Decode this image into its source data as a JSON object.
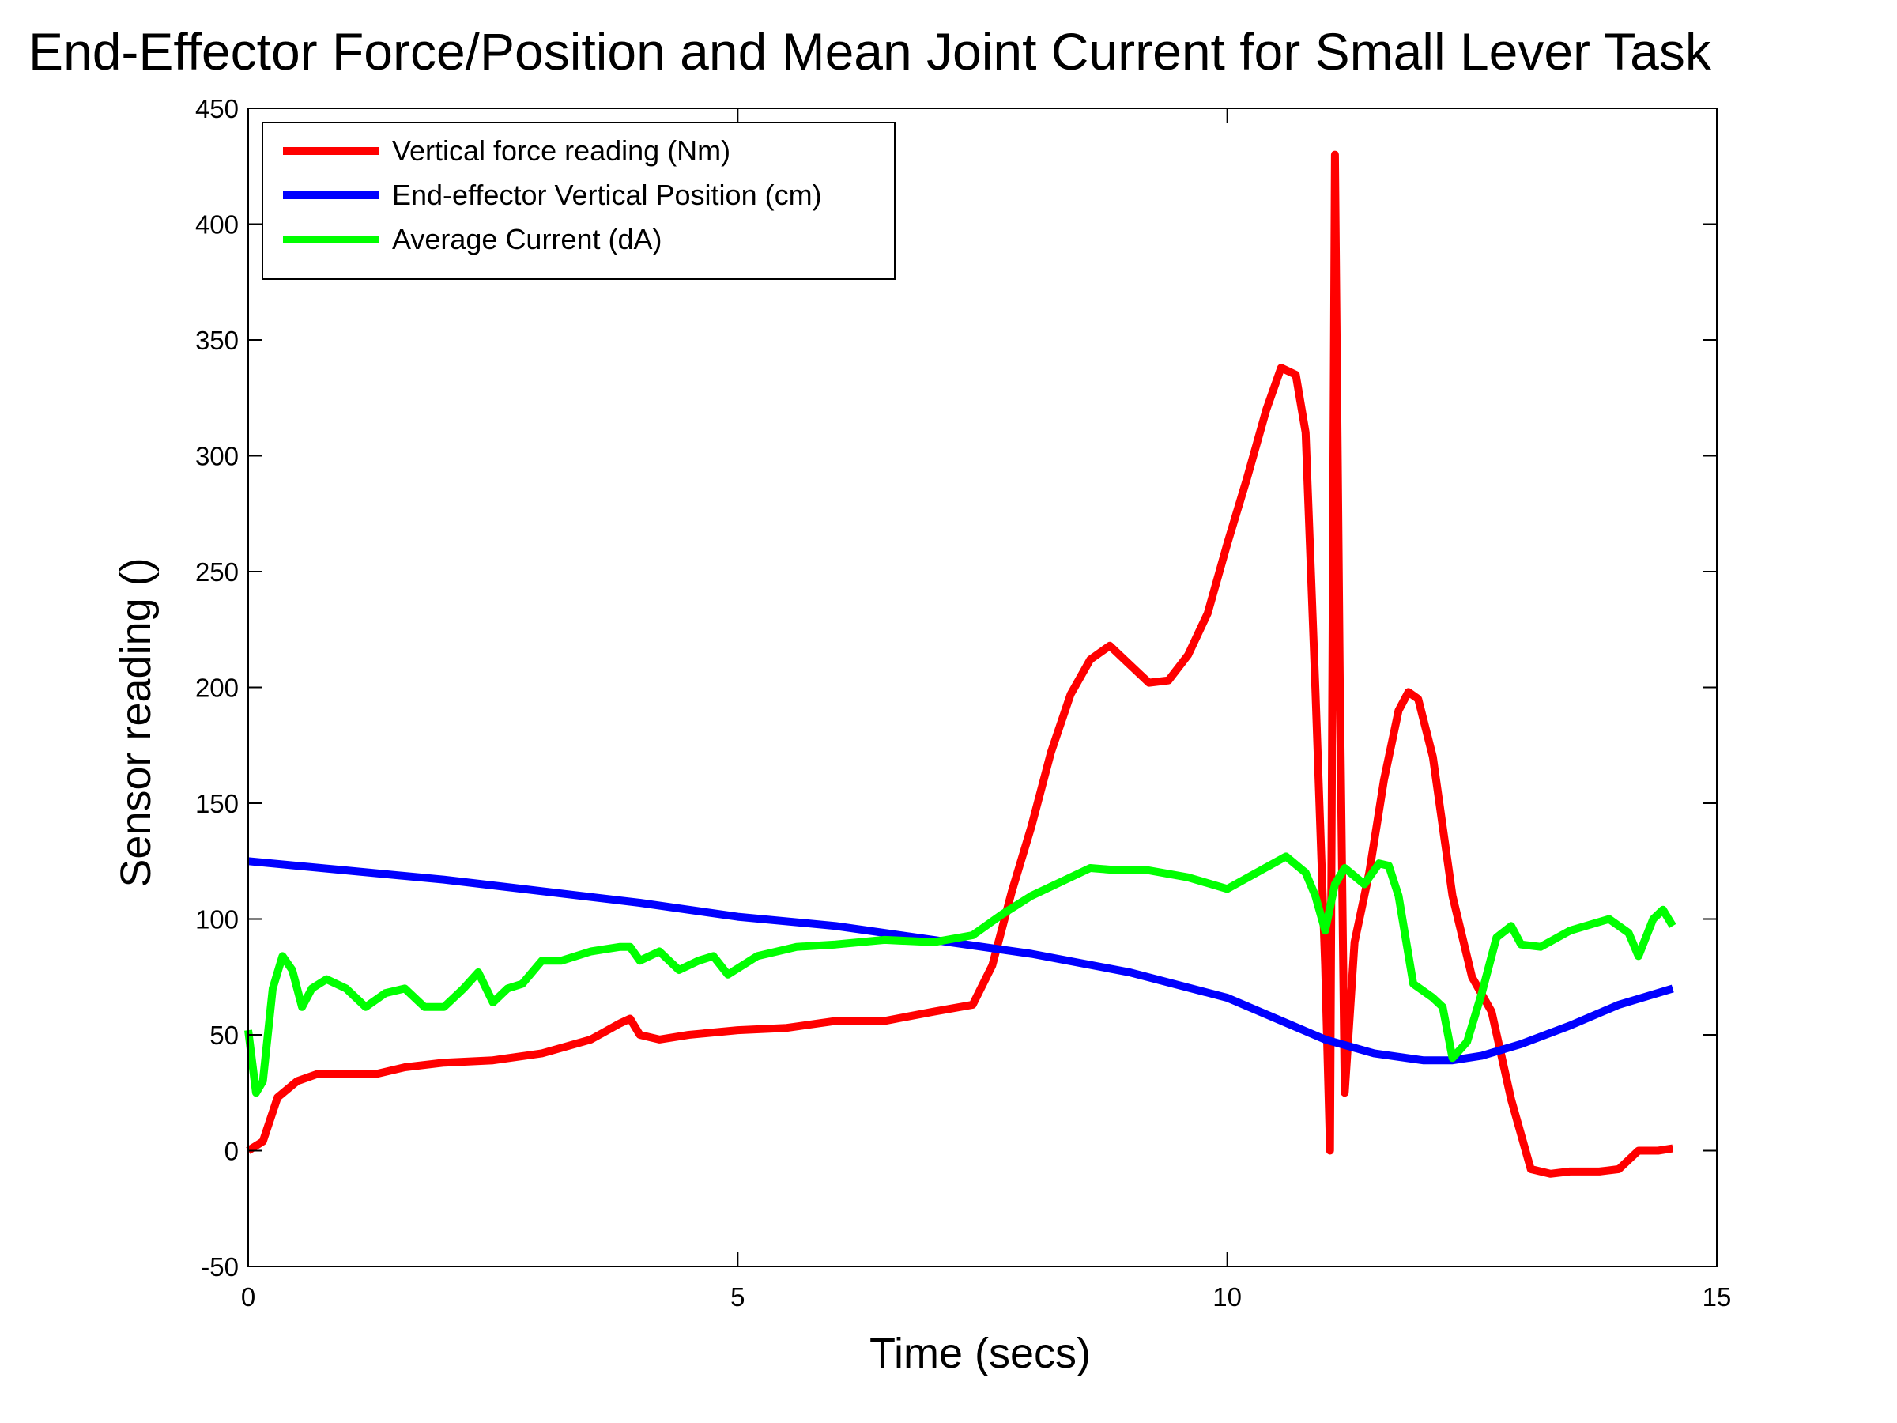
{
  "chart_data": {
    "type": "line",
    "title": "End-Effector Force/Position and Mean Joint Current for Small Lever Task",
    "xlabel": "Time (secs)",
    "ylabel": "Sensor reading ()",
    "xlim": [
      0,
      15
    ],
    "ylim": [
      -50,
      450
    ],
    "xticks": [
      0,
      5,
      10,
      15
    ],
    "yticks": [
      -50,
      0,
      50,
      100,
      150,
      200,
      250,
      300,
      350,
      400,
      450
    ],
    "grid": false,
    "legend_position": "top-left",
    "series": [
      {
        "name": "Vertical force reading (Nm)",
        "color": "#ff0000",
        "x": [
          0,
          0.15,
          0.3,
          0.5,
          0.7,
          1.0,
          1.3,
          1.6,
          2.0,
          2.5,
          3.0,
          3.5,
          3.8,
          3.9,
          4.0,
          4.2,
          4.5,
          5.0,
          5.5,
          6.0,
          6.5,
          7.0,
          7.4,
          7.6,
          7.8,
          8.0,
          8.2,
          8.4,
          8.6,
          8.8,
          9.0,
          9.2,
          9.4,
          9.6,
          9.8,
          10.0,
          10.2,
          10.4,
          10.55,
          10.7,
          10.8,
          10.9,
          11.0,
          11.05,
          11.1,
          11.15,
          11.2,
          11.3,
          11.45,
          11.6,
          11.75,
          11.85,
          11.95,
          12.1,
          12.3,
          12.5,
          12.7,
          12.9,
          13.1,
          13.3,
          13.5,
          13.8,
          14.0,
          14.2,
          14.4,
          14.55
        ],
        "y": [
          0,
          4,
          23,
          30,
          33,
          33,
          33,
          36,
          38,
          39,
          42,
          48,
          55,
          57,
          50,
          48,
          50,
          52,
          53,
          56,
          56,
          60,
          63,
          80,
          112,
          140,
          172,
          197,
          212,
          218,
          210,
          202,
          203,
          214,
          232,
          262,
          290,
          320,
          338,
          335,
          310,
          200,
          80,
          0,
          430,
          200,
          25,
          90,
          120,
          160,
          190,
          198,
          195,
          170,
          110,
          75,
          60,
          22,
          -8,
          -10,
          -9,
          -9,
          -8,
          0,
          0,
          1
        ]
      },
      {
        "name": "End-effector Vertical Position (cm)",
        "color": "#0000ff",
        "x": [
          0,
          1,
          2,
          3,
          4,
          5,
          6,
          7,
          8,
          9,
          10,
          10.5,
          11,
          11.5,
          12,
          12.3,
          12.6,
          13,
          13.5,
          14,
          14.55
        ],
        "y": [
          125,
          121,
          117,
          112,
          107,
          101,
          97,
          91,
          85,
          77,
          66,
          57,
          48,
          42,
          39,
          39,
          41,
          46,
          54,
          63,
          70
        ]
      },
      {
        "name": "Average Current (dA)",
        "color": "#00ff00",
        "x": [
          0,
          0.08,
          0.15,
          0.25,
          0.35,
          0.45,
          0.55,
          0.65,
          0.8,
          1.0,
          1.2,
          1.4,
          1.6,
          1.8,
          2.0,
          2.2,
          2.35,
          2.5,
          2.65,
          2.8,
          3.0,
          3.2,
          3.5,
          3.8,
          3.9,
          4.0,
          4.2,
          4.4,
          4.6,
          4.75,
          4.9,
          5.2,
          5.6,
          6.0,
          6.5,
          7.0,
          7.4,
          7.7,
          8.0,
          8.3,
          8.6,
          8.9,
          9.2,
          9.6,
          10.0,
          10.3,
          10.6,
          10.8,
          10.9,
          11.0,
          11.1,
          11.2,
          11.4,
          11.55,
          11.65,
          11.75,
          11.9,
          12.1,
          12.2,
          12.3,
          12.45,
          12.6,
          12.75,
          12.9,
          13.0,
          13.2,
          13.5,
          13.9,
          14.1,
          14.2,
          14.35,
          14.45,
          14.55
        ],
        "y": [
          52,
          25,
          30,
          70,
          84,
          78,
          62,
          70,
          74,
          70,
          62,
          68,
          70,
          62,
          62,
          70,
          77,
          64,
          70,
          72,
          82,
          82,
          86,
          88,
          88,
          82,
          86,
          78,
          82,
          84,
          76,
          84,
          88,
          89,
          91,
          90,
          93,
          102,
          110,
          116,
          122,
          121,
          121,
          118,
          113,
          120,
          127,
          120,
          110,
          95,
          115,
          122,
          115,
          124,
          123,
          110,
          72,
          66,
          62,
          40,
          47,
          68,
          92,
          97,
          89,
          88,
          95,
          100,
          94,
          84,
          100,
          104,
          97
        ]
      }
    ]
  }
}
